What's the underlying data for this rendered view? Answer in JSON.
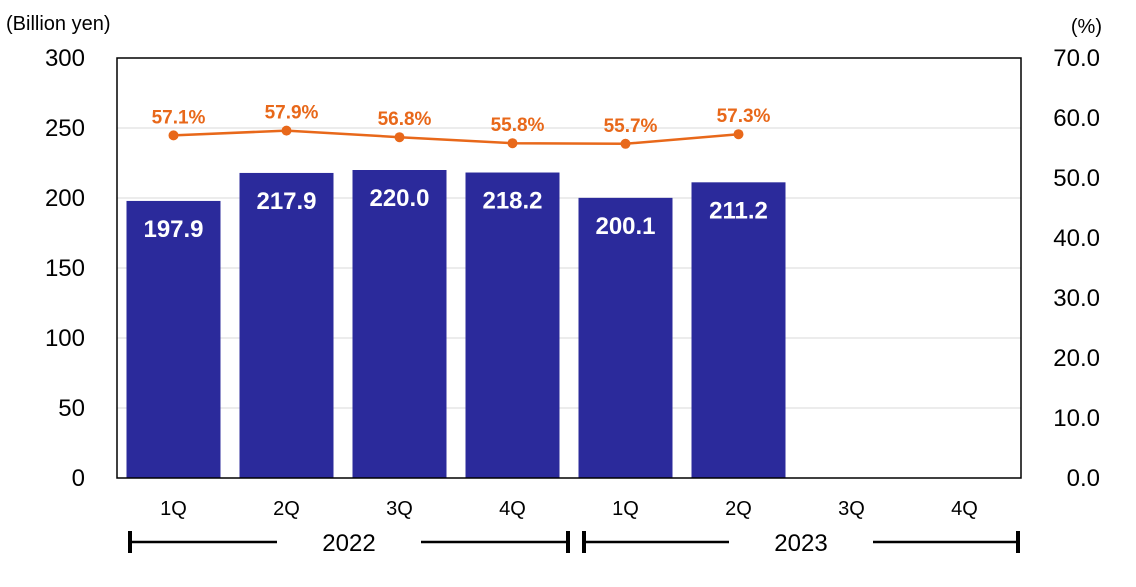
{
  "chart_data": {
    "type": "bar",
    "categories": [
      "1Q",
      "2Q",
      "3Q",
      "4Q",
      "1Q",
      "2Q",
      "3Q",
      "4Q"
    ],
    "groups": [
      {
        "label": "2022",
        "from": 0,
        "to": 3
      },
      {
        "label": "2023",
        "from": 4,
        "to": 7
      }
    ],
    "series": [
      {
        "type": "bar",
        "axis": "left",
        "values": [
          197.9,
          217.9,
          220.0,
          218.2,
          200.1,
          211.2,
          null,
          null
        ],
        "labels": [
          "197.9",
          "217.9",
          "220.0",
          "218.2",
          "200.1",
          "211.2",
          "",
          ""
        ],
        "color": "#2b2a9b"
      },
      {
        "type": "line",
        "axis": "right",
        "values": [
          57.1,
          57.9,
          56.8,
          55.8,
          55.7,
          57.3,
          null,
          null
        ],
        "labels": [
          "57.1%",
          "57.9%",
          "56.8%",
          "55.8%",
          "55.7%",
          "57.3%",
          "",
          ""
        ],
        "color": "#e8681a"
      }
    ],
    "left_axis": {
      "unit_label": "(Billion yen)",
      "ylim": [
        0,
        300
      ],
      "ticks": [
        "0",
        "50",
        "100",
        "150",
        "200",
        "250",
        "300"
      ]
    },
    "right_axis": {
      "unit_label": "(%)",
      "ylim": [
        0,
        70
      ],
      "ticks": [
        "0.0",
        "10.0",
        "20.0",
        "30.0",
        "40.0",
        "50.0",
        "60.0",
        "70.0"
      ]
    },
    "grid": true,
    "gridline_color": "#d9d9d9"
  }
}
